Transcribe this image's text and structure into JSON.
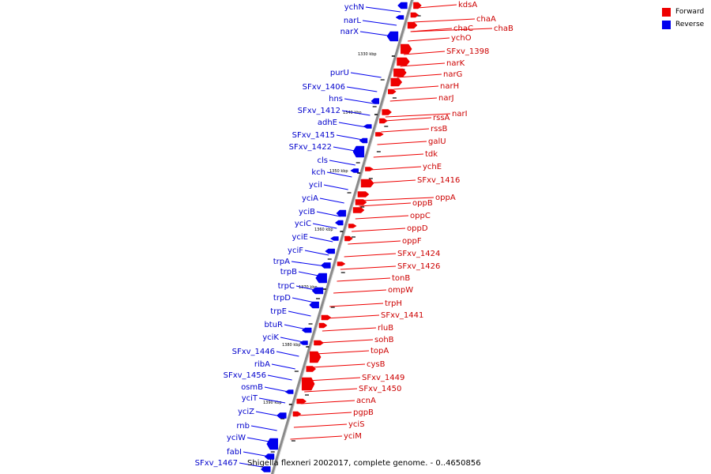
{
  "caption": "Shigella flexneri 2002017, complete genome. - 0..4650856",
  "legend": [
    {
      "label": "Forward",
      "color": "#ee0000"
    },
    {
      "label": "Reverse",
      "color": "#0000ee"
    }
  ],
  "colors": {
    "forward": "#ee0000",
    "reverse": "#0000ee",
    "backbone": "#888888",
    "label_forward": "#cc0000",
    "label_reverse": "#0000cc"
  },
  "ticks": [
    "1330 kbp",
    "1340 kbp",
    "1350 kbp",
    "1360 kbp",
    "1370 kbp",
    "1380 kbp",
    "1390 kbp"
  ],
  "forward_genes": [
    "kdsA",
    "chaA",
    "chaB",
    "chaC",
    "ychO",
    "SFxv_1398",
    "narK",
    "narG",
    "narH",
    "narJ",
    "narI",
    "rssA",
    "rssB",
    "galU",
    "tdk",
    "ychE",
    "SFxv_1416",
    "oppA",
    "oppB",
    "oppC",
    "oppD",
    "oppF",
    "SFxv_1424",
    "SFxv_1426",
    "tonB",
    "ompW",
    "trpH",
    "SFxv_1441",
    "rluB",
    "sohB",
    "topA",
    "cysB",
    "SFxv_1449",
    "SFxv_1450",
    "acnA",
    "pgpB",
    "yciS",
    "yciM"
  ],
  "reverse_genes": [
    "ychN",
    "narL",
    "narX",
    "purU",
    "SFxv_1406",
    "hns",
    "SFxv_1412",
    "adhE",
    "SFxv_1415",
    "SFxv_1422",
    "cls",
    "kch",
    "yciI",
    "yciA",
    "yciB",
    "yciC",
    "yciE",
    "yciF",
    "trpA",
    "trpB",
    "trpC",
    "trpD",
    "trpE",
    "btuR",
    "yciK",
    "SFxv_1446",
    "ribA",
    "SFxv_1456",
    "osmB",
    "yciT",
    "yciZ",
    "rnb",
    "yciW",
    "fabI",
    "SFxv_1467"
  ]
}
